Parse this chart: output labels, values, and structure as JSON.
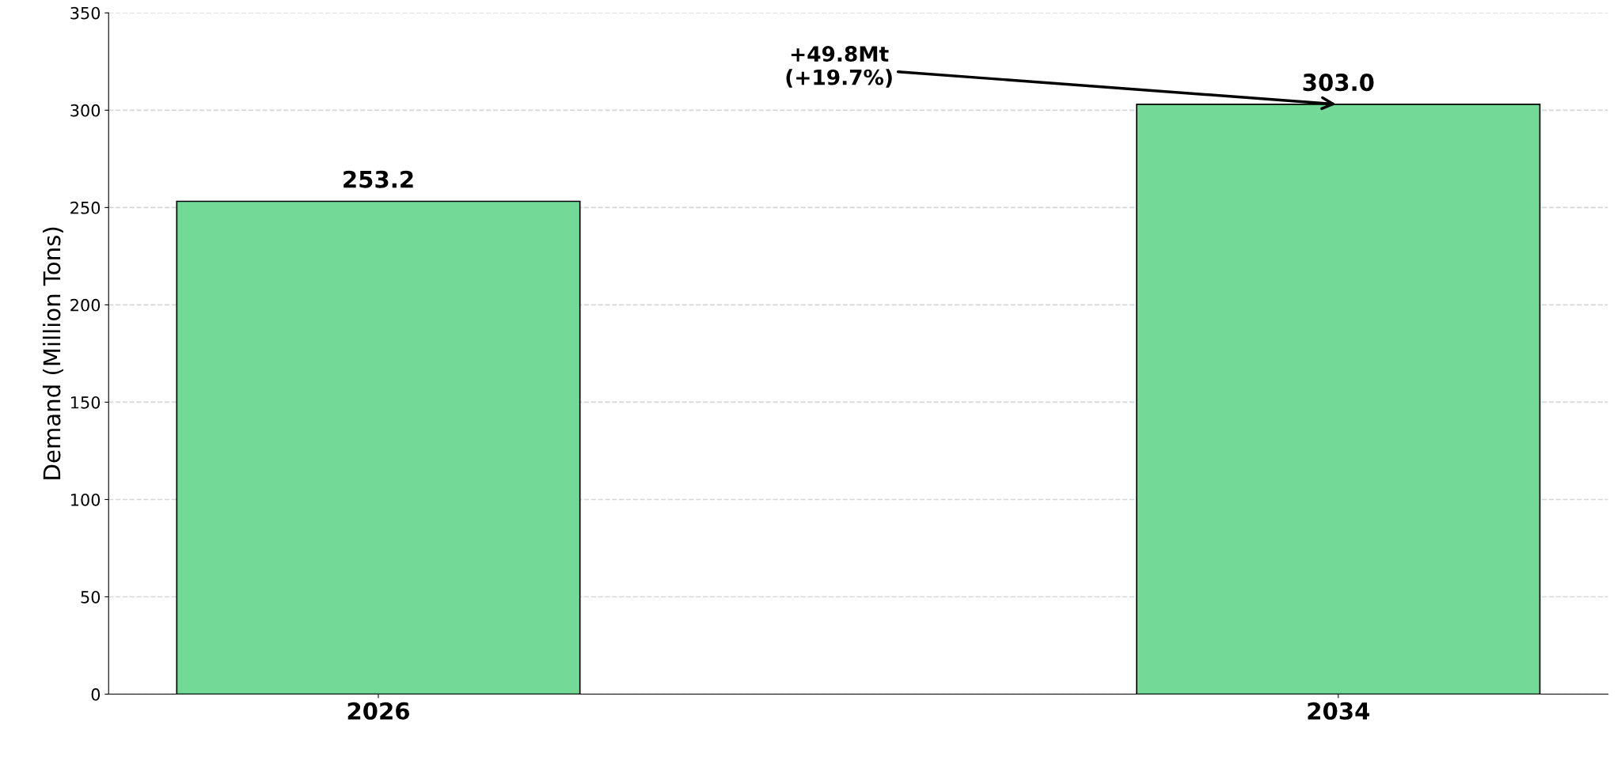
{
  "chart_data": {
    "type": "bar",
    "categories": [
      "2026",
      "2034"
    ],
    "values": [
      253.2,
      303.0
    ],
    "color": "#72d997",
    "ylabel": "Demand (Million Tons)",
    "ylim": [
      0,
      350
    ],
    "yticks": [
      0,
      50,
      100,
      150,
      200,
      250,
      300,
      350
    ],
    "value_labels": [
      "253.2",
      "303.0"
    ],
    "grid": "y",
    "legend": false,
    "annotations": [
      {
        "text": "+49.8Mt\n(+19.7%)",
        "x": "2034",
        "y": 303.0
      }
    ]
  }
}
